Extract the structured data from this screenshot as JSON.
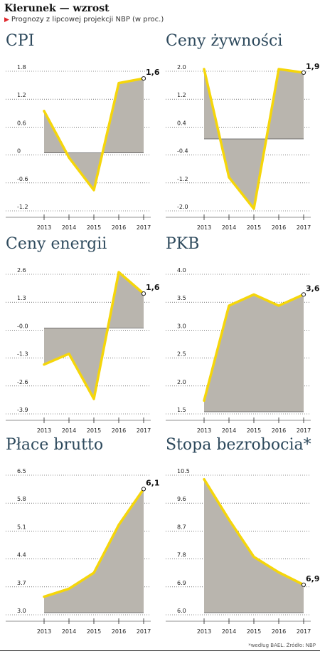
{
  "header": {
    "title": "Kierunek — wzrost",
    "subtitle": "Prognozy z lipcowej projekcji NBP (w proc.)"
  },
  "footnote": "*według BAEL. Źródło: NBP",
  "colors": {
    "line": "#f5d60a",
    "area": "#b9b5ae",
    "title": "#2e4a5d",
    "accent": "#e0262b"
  },
  "chart_data": [
    {
      "type": "area",
      "title": "CPI",
      "categories": [
        "2013",
        "2014",
        "2015",
        "2016",
        "2017"
      ],
      "values": [
        0.9,
        -0.1,
        -0.8,
        1.5,
        1.6
      ],
      "yticks": [
        1.8,
        1.2,
        0.6,
        0,
        -0.6,
        -1.2
      ],
      "ytick_labels": [
        "1.8",
        "1.2",
        "0.6",
        "0",
        "-0.6",
        "-1.2"
      ],
      "ylim": [
        -1.2,
        1.8
      ],
      "baseline": 0,
      "last_label": "1,6"
    },
    {
      "type": "area",
      "title": "Ceny żywności",
      "categories": [
        "2013",
        "2014",
        "2015",
        "2016",
        "2017"
      ],
      "values": [
        2.0,
        -1.1,
        -2.0,
        2.0,
        1.9
      ],
      "yticks": [
        2.0,
        1.2,
        0.4,
        -0.4,
        -1.2,
        -2.0
      ],
      "ytick_labels": [
        "2.0",
        "1.2",
        "0.4",
        "-0.4",
        "-1.2",
        "-2.0"
      ],
      "ylim": [
        -2.0,
        2.0
      ],
      "baseline": 0,
      "last_label": "1,9"
    },
    {
      "type": "area",
      "title": "Ceny energii",
      "categories": [
        "2013",
        "2014",
        "2015",
        "2016",
        "2017"
      ],
      "values": [
        -1.7,
        -1.2,
        -3.3,
        2.6,
        1.6
      ],
      "yticks": [
        2.6,
        1.3,
        0.0,
        -1.3,
        -2.6,
        -3.9
      ],
      "ytick_labels": [
        "2.6",
        "1.3",
        "-0.0",
        "-1.3",
        "-2.6",
        "-3.9"
      ],
      "ylim": [
        -3.9,
        2.6
      ],
      "baseline": 0,
      "last_label": "1,6"
    },
    {
      "type": "area",
      "title": "PKB",
      "categories": [
        "2013",
        "2014",
        "2015",
        "2016",
        "2017"
      ],
      "values": [
        1.7,
        3.4,
        3.6,
        3.4,
        3.6
      ],
      "yticks": [
        4.0,
        3.5,
        3.0,
        2.5,
        2.0,
        1.5
      ],
      "ytick_labels": [
        "4.0",
        "3.5",
        "3.0",
        "2.5",
        "2.0",
        "1.5"
      ],
      "ylim": [
        1.5,
        4.0
      ],
      "baseline": 1.5,
      "last_label": "3,6"
    },
    {
      "type": "area",
      "title": "Płace brutto",
      "categories": [
        "2013",
        "2014",
        "2015",
        "2016",
        "2017"
      ],
      "values": [
        3.4,
        3.6,
        4.0,
        5.2,
        6.1
      ],
      "yticks": [
        6.5,
        5.8,
        5.1,
        4.4,
        3.7,
        3.0
      ],
      "ytick_labels": [
        "6.5",
        "5.8",
        "5.1",
        "4.4",
        "3.7",
        "3.0"
      ],
      "ylim": [
        3.0,
        6.5
      ],
      "baseline": 3.0,
      "last_label": "6,1"
    },
    {
      "type": "area",
      "title": "Stopa bezrobocia*",
      "categories": [
        "2013",
        "2014",
        "2015",
        "2016",
        "2017"
      ],
      "values": [
        10.3,
        9.0,
        7.8,
        7.3,
        6.9
      ],
      "yticks": [
        10.5,
        9.6,
        8.7,
        7.8,
        6.9,
        6.0
      ],
      "ytick_labels": [
        "10.5",
        "9.6",
        "8.7",
        "7.8",
        "6.9",
        "6.0"
      ],
      "ylim": [
        6.0,
        10.5
      ],
      "baseline": 6.0,
      "last_label": "6,9"
    }
  ]
}
